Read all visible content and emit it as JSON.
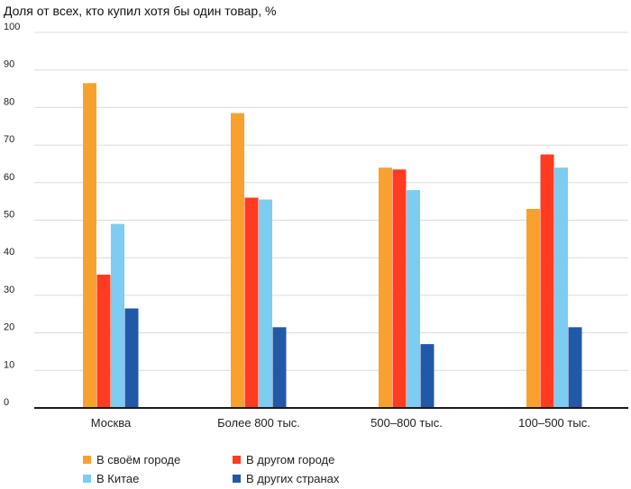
{
  "chart_data": {
    "type": "bar",
    "title": "Доля от всех, кто купил хотя бы один товар, %",
    "xlabel": "",
    "ylabel": "",
    "ylim": [
      0,
      100
    ],
    "yticks": [
      0,
      10,
      20,
      30,
      40,
      50,
      60,
      70,
      80,
      90,
      100
    ],
    "grid": true,
    "legend_position": "bottom-left",
    "categories": [
      "Москва",
      "Более 800 тыс.",
      "500–800 тыс.",
      "100–500 тыс."
    ],
    "series": [
      {
        "name": "В своём городе",
        "color": "#F9A12E",
        "values": [
          86.5,
          78.5,
          64,
          53
        ]
      },
      {
        "name": "В другом городе",
        "color": "#FF3B22",
        "values": [
          35.5,
          56,
          63.5,
          67.5
        ]
      },
      {
        "name": "В Китае",
        "color": "#7DCCF2",
        "values": [
          49,
          55.5,
          58,
          64
        ]
      },
      {
        "name": "В других странах",
        "color": "#2258A8",
        "values": [
          26.5,
          21.5,
          17,
          21.5
        ]
      }
    ]
  }
}
